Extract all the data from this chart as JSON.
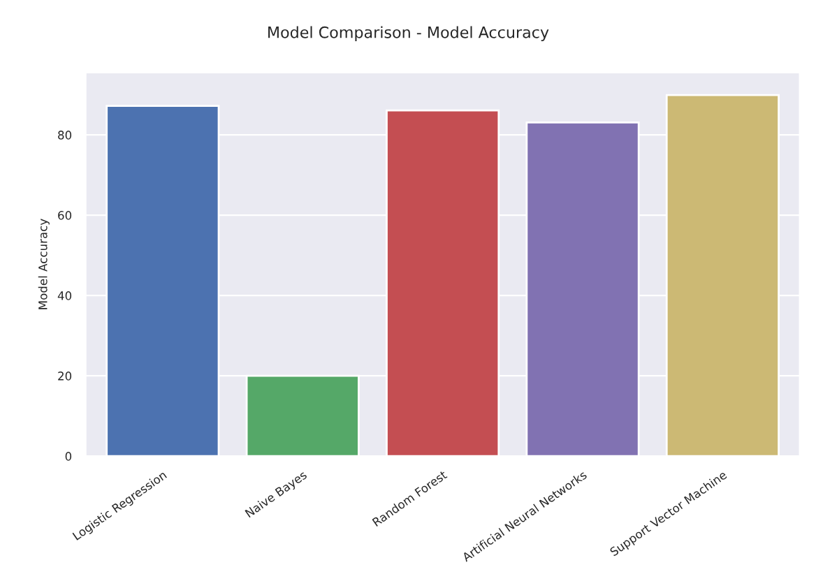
{
  "chart_data": {
    "type": "bar",
    "title": "Model Comparison - Model Accuracy",
    "ylabel": "Model Accuracy",
    "categories": [
      "Logistic Regression",
      "Naive Bayes",
      "Random Forest",
      "Artificial Neural Networks",
      "Support Vector Machine"
    ],
    "values": [
      87.2,
      20.0,
      86.1,
      83.1,
      89.9
    ],
    "colors": [
      "#4c72b0",
      "#55a868",
      "#c44e52",
      "#8172b2",
      "#ccb974"
    ],
    "ylim": [
      0,
      95.5
    ],
    "yticks": [
      0,
      20,
      40,
      60,
      80
    ],
    "grid": "y"
  }
}
